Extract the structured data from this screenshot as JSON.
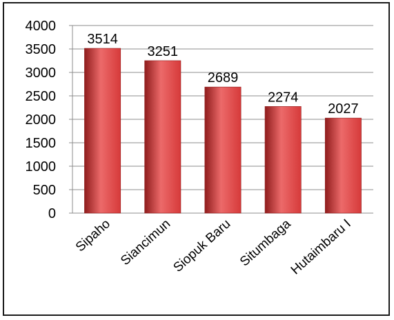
{
  "chart_data": {
    "type": "bar",
    "categories": [
      "Sipaho",
      "Siancimun",
      "Siopuk Baru",
      "Situmbaga",
      "Hutaimbaru I"
    ],
    "values": [
      3514,
      3251,
      2689,
      2274,
      2027
    ],
    "data_labels": [
      "3514",
      "3251",
      "2689",
      "2274",
      "2027"
    ],
    "y_ticks": [
      "0",
      "500",
      "1000",
      "1500",
      "2000",
      "2500",
      "3000",
      "3500",
      "4000"
    ],
    "ylim": [
      0,
      4000
    ],
    "grid": true,
    "bar_color": "#d63a3a",
    "bar_color_dark": "#8f1c1c",
    "bar_color_light": "#ec6a6a",
    "title": "",
    "xlabel": "",
    "ylabel": ""
  }
}
